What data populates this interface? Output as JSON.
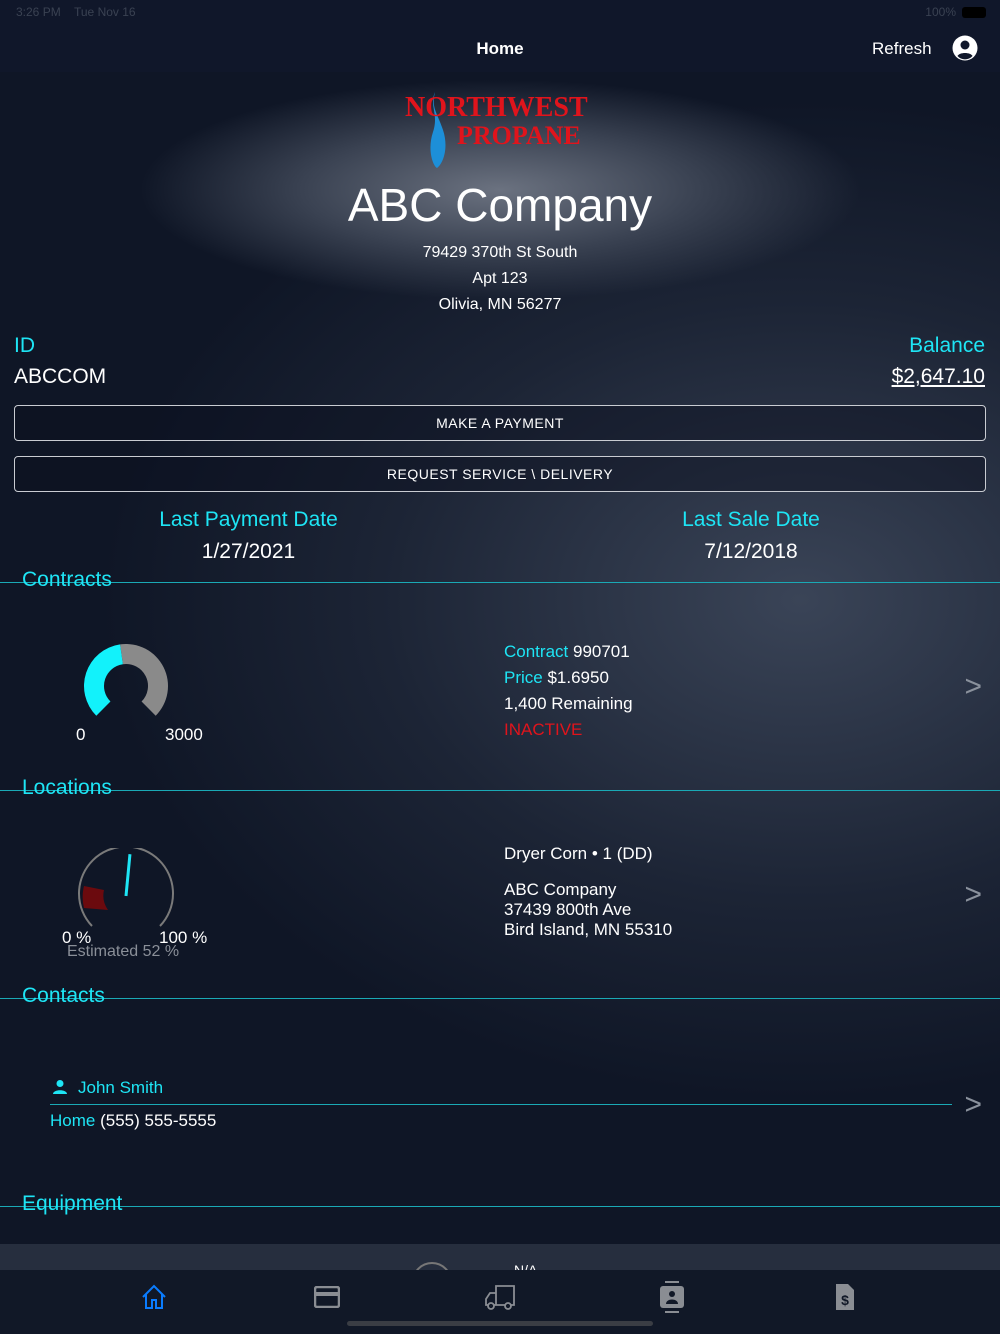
{
  "status": {
    "time": "3:26 PM",
    "date": "Tue Nov 16",
    "battery": "100%"
  },
  "nav": {
    "title": "Home",
    "refresh": "Refresh"
  },
  "brand": {
    "logo_text_1": "NORTHWEST",
    "logo_text_2": "PROPANE"
  },
  "customer": {
    "name": "ABC Company",
    "address1": "79429 370th St South",
    "address2": "Apt 123",
    "address3": "Olivia, MN 56277",
    "id_label": "ID",
    "id": "ABCCOM",
    "balance_label": "Balance",
    "balance": "$2,647.10"
  },
  "actions": {
    "payment": "MAKE A PAYMENT",
    "service": "REQUEST SERVICE \\ DELIVERY"
  },
  "dates": {
    "last_payment_label": "Last Payment Date",
    "last_payment": "1/27/2021",
    "last_sale_label": "Last Sale Date",
    "last_sale": "7/12/2018"
  },
  "contracts": {
    "title": "Contracts",
    "gauge_min": "0",
    "gauge_max": "3000",
    "gauge_fraction": 0.47,
    "contract_label": "Contract",
    "contract": "990701",
    "price_label": "Price",
    "price": "$1.6950",
    "remaining": "1,400 Remaining",
    "status": "INACTIVE",
    "status_color": "#e0141c"
  },
  "locations": {
    "title": "Locations",
    "gauge_min": "0 %",
    "gauge_max": "100 %",
    "estimated": "Estimated 52 %",
    "level_percent": 52,
    "tank": "Dryer Corn • 1 (DD)",
    "name": "ABC Company",
    "street": "37439 800th Ave",
    "city": "Bird Island, MN  55310"
  },
  "contacts": {
    "title": "Contacts",
    "name": "John Smith",
    "phone_label": "Home",
    "phone": "(555) 555-5555"
  },
  "equipment": {
    "title": "Equipment",
    "value": "N/A"
  },
  "chevron": ">",
  "tabs": [
    {
      "icon": "home-icon",
      "active": true
    },
    {
      "icon": "credit-card-icon"
    },
    {
      "icon": "truck-icon"
    },
    {
      "icon": "contact-card-icon"
    },
    {
      "icon": "invoice-dollar-icon"
    }
  ],
  "colors": {
    "accent": "#1ee5f5",
    "tab_active": "#0a7cff",
    "tab_inactive": "#8a8d93"
  }
}
